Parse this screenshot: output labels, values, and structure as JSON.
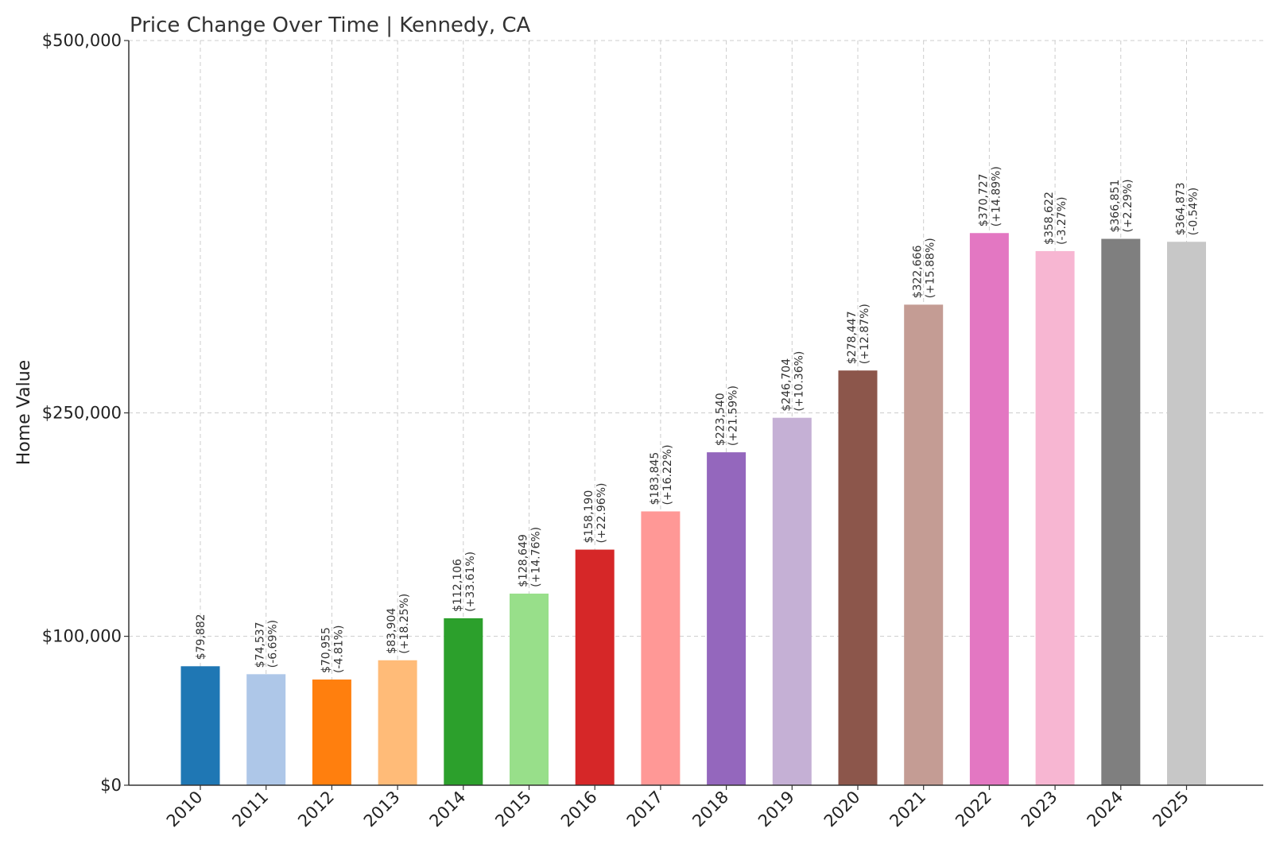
{
  "chart_data": {
    "type": "bar",
    "title": "Price Change Over Time | Kennedy, CA",
    "xlabel": "",
    "ylabel": "Home Value",
    "ylim": [
      0,
      500000
    ],
    "yticks": [
      {
        "value": 0,
        "label": "$0"
      },
      {
        "value": 100000,
        "label": "$100,000"
      },
      {
        "value": 250000,
        "label": "$250,000"
      },
      {
        "value": 500000,
        "label": "$500,000"
      }
    ],
    "grid": true,
    "categories": [
      "2010",
      "2011",
      "2012",
      "2013",
      "2014",
      "2015",
      "2016",
      "2017",
      "2018",
      "2019",
      "2020",
      "2021",
      "2022",
      "2023",
      "2024",
      "2025"
    ],
    "values": [
      79882,
      74537,
      70955,
      83904,
      112106,
      128649,
      158190,
      183845,
      223540,
      246704,
      278447,
      322666,
      370727,
      358622,
      366851,
      364873
    ],
    "value_labels": [
      "$79,882",
      "$74,537",
      "$70,955",
      "$83,904",
      "$112,106",
      "$128,649",
      "$158,190",
      "$183,845",
      "$223,540",
      "$246,704",
      "$278,447",
      "$322,666",
      "$370,727",
      "$358,622",
      "$366,851",
      "$364,873"
    ],
    "change_labels": [
      "",
      "(-6.69%)",
      "(-4.81%)",
      "(+18.25%)",
      "(+33.61%)",
      "(+14.76%)",
      "(+22.96%)",
      "(+16.22%)",
      "(+21.59%)",
      "(+10.36%)",
      "(+12.87%)",
      "(+15.88%)",
      "(+14.89%)",
      "(-3.27%)",
      "(+2.29%)",
      "(-0.54%)"
    ],
    "colors": [
      "#1f77b4",
      "#aec7e8",
      "#ff7f0e",
      "#ffbb78",
      "#2ca02c",
      "#98df8a",
      "#d62728",
      "#ff9896",
      "#9467bd",
      "#c5b0d5",
      "#8c564b",
      "#c49c94",
      "#e377c2",
      "#f7b6d2",
      "#7f7f7f",
      "#c7c7c7"
    ]
  }
}
